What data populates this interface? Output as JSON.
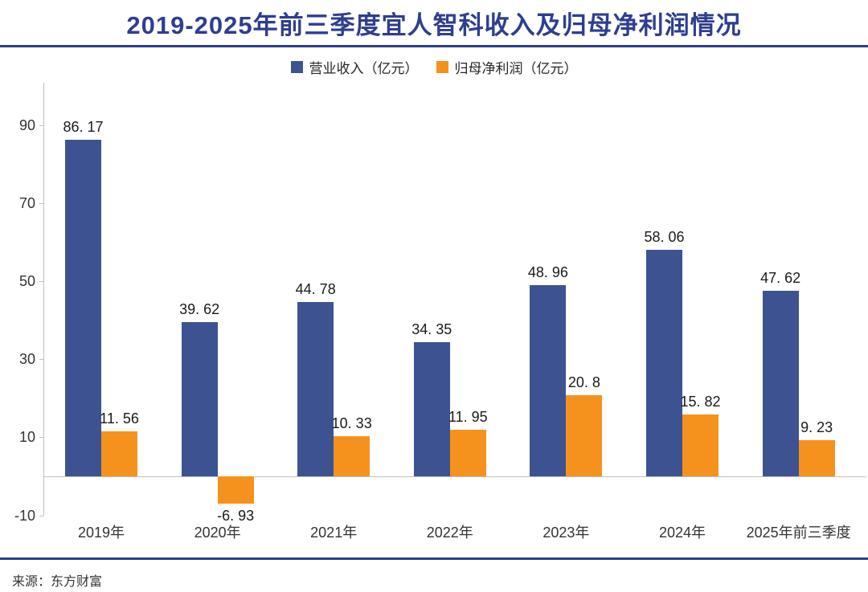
{
  "header": {
    "title": "2019-2025年前三季度宜人智科收入及归母净利润情况"
  },
  "legend": {
    "items": [
      {
        "label": "营业收入（亿元）",
        "color": "#3D5391"
      },
      {
        "label": "归母净利润（亿元）",
        "color": "#F5921E"
      }
    ]
  },
  "source": {
    "text": "来源：东方财富"
  },
  "chart_data": {
    "type": "bar",
    "title": "2019-2025年前三季度宜人智科收入及归母净利润情况",
    "categories": [
      "2019年",
      "2020年",
      "2021年",
      "2022年",
      "2023年",
      "2024年",
      "2025年前三季度"
    ],
    "series": [
      {
        "name": "营业收入（亿元）",
        "color": "#3D5391",
        "values": [
          86.17,
          39.62,
          44.78,
          34.35,
          48.96,
          58.06,
          47.62
        ],
        "labels": [
          "86. 17",
          "39. 62",
          "44. 78",
          "34. 35",
          "48. 96",
          "58. 06",
          "47. 62"
        ]
      },
      {
        "name": "归母净利润（亿元）",
        "color": "#F5921E",
        "values": [
          11.56,
          -6.93,
          10.33,
          11.95,
          20.8,
          15.82,
          9.23
        ],
        "labels": [
          "11. 56",
          "-6. 93",
          "10. 33",
          "11. 95",
          "20. 8",
          "15. 82",
          "9. 23"
        ]
      }
    ],
    "yticks": [
      90,
      70,
      50,
      30,
      10,
      -10
    ],
    "ylim": [
      -10,
      101
    ],
    "xlabel": "",
    "ylabel": "",
    "grid": false,
    "legend_position": "top",
    "axis_color": "#BFBFBF",
    "value_label_color": "#1A1A1A"
  }
}
